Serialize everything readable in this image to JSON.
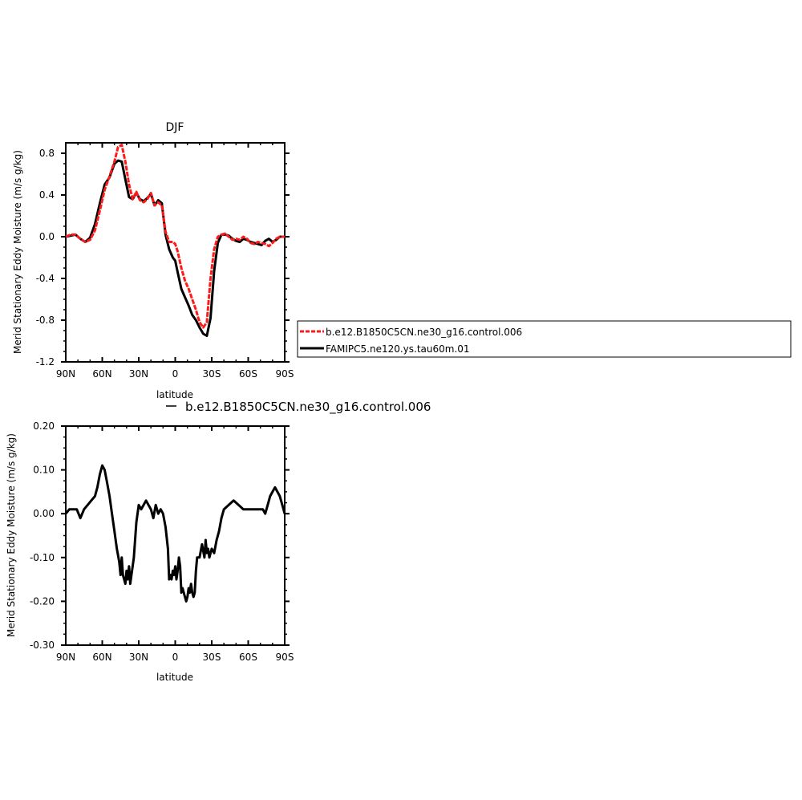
{
  "figure": {
    "legend": {
      "entries": [
        {
          "label": "b.e12.B1850C5CN.ne30_g16.control.006",
          "color": "#ff1a1a",
          "style": "dashed"
        },
        {
          "label": "FAMIPC5.ne120.ys.tau60m.01",
          "color": "#000000",
          "style": "solid"
        }
      ]
    }
  },
  "chart_data": [
    {
      "type": "line",
      "title": "DJF",
      "xlabel": "latitude",
      "ylabel": "Merid Stationary Eddy Moisture (m/s g/kg)",
      "xlim": [
        90,
        -90
      ],
      "ylim": [
        -1.2,
        0.9
      ],
      "x_ticks": [
        90,
        60,
        30,
        0,
        -30,
        -60,
        -90
      ],
      "x_tick_labels": [
        "90N",
        "60N",
        "30N",
        "0",
        "30S",
        "60S",
        "90S"
      ],
      "y_ticks": [
        0.8,
        0.4,
        0.0,
        -0.4,
        -0.8,
        -1.2
      ],
      "y_tick_labels": [
        "0.8",
        "0.4",
        "0.0",
        "-0.4",
        "-0.8",
        "-1.2"
      ],
      "series": [
        {
          "name": "b.e12.B1850C5CN.ne30_g16.control.006",
          "color": "#ff1a1a",
          "x": [
            90,
            86,
            82,
            78,
            74,
            70,
            66,
            62,
            58,
            54,
            50,
            47,
            44,
            41,
            38,
            35,
            32,
            29,
            26,
            23,
            20,
            17,
            14,
            11,
            8,
            5,
            2,
            0,
            -2,
            -5,
            -8,
            -11,
            -14,
            -17,
            -20,
            -23,
            -26,
            -29,
            -32,
            -35,
            -38,
            -41,
            -44,
            -47,
            -50,
            -53,
            -56,
            -59,
            -62,
            -65,
            -68,
            -71,
            -74,
            -77,
            -80,
            -83,
            -86,
            -90
          ],
          "y": [
            0.0,
            0.02,
            0.02,
            -0.02,
            -0.05,
            -0.03,
            0.06,
            0.25,
            0.45,
            0.58,
            0.72,
            0.86,
            0.88,
            0.72,
            0.5,
            0.36,
            0.43,
            0.35,
            0.33,
            0.36,
            0.42,
            0.3,
            0.33,
            0.3,
            0.05,
            -0.05,
            -0.05,
            -0.07,
            -0.14,
            -0.3,
            -0.42,
            -0.5,
            -0.6,
            -0.7,
            -0.82,
            -0.87,
            -0.82,
            -0.4,
            -0.12,
            0.0,
            0.02,
            0.03,
            0.0,
            -0.03,
            -0.02,
            -0.03,
            0.0,
            -0.02,
            -0.06,
            -0.07,
            -0.05,
            -0.06,
            -0.07,
            -0.09,
            -0.06,
            -0.02,
            0.0,
            0.0
          ]
        },
        {
          "name": "FAMIPC5.ne120.ys.tau60m.01",
          "color": "#000000",
          "x": [
            90,
            86,
            82,
            78,
            74,
            70,
            66,
            62,
            58,
            54,
            50,
            47,
            44,
            41,
            38,
            35,
            32,
            29,
            26,
            23,
            20,
            17,
            14,
            11,
            8,
            5,
            2,
            0,
            -2,
            -5,
            -8,
            -11,
            -14,
            -17,
            -20,
            -23,
            -26,
            -29,
            -32,
            -35,
            -38,
            -41,
            -44,
            -47,
            -50,
            -53,
            -56,
            -59,
            -62,
            -65,
            -68,
            -71,
            -74,
            -77,
            -80,
            -83,
            -86,
            -90
          ],
          "y": [
            0.0,
            0.01,
            0.02,
            -0.02,
            -0.05,
            -0.01,
            0.12,
            0.32,
            0.5,
            0.57,
            0.7,
            0.73,
            0.72,
            0.55,
            0.38,
            0.36,
            0.42,
            0.36,
            0.34,
            0.37,
            0.41,
            0.3,
            0.35,
            0.32,
            0.02,
            -0.12,
            -0.2,
            -0.23,
            -0.34,
            -0.5,
            -0.58,
            -0.66,
            -0.75,
            -0.8,
            -0.87,
            -0.93,
            -0.95,
            -0.78,
            -0.33,
            -0.06,
            0.02,
            0.02,
            0.01,
            -0.02,
            -0.04,
            -0.05,
            -0.02,
            -0.03,
            -0.05,
            -0.06,
            -0.07,
            -0.08,
            -0.04,
            -0.02,
            -0.05,
            -0.03,
            0.0,
            0.0
          ]
        }
      ]
    },
    {
      "type": "line",
      "title": "",
      "xlabel": "latitude",
      "ylabel": "Merid Stationary Eddy Moisture (m/s g/kg)",
      "xlim": [
        90,
        -90
      ],
      "ylim": [
        -0.3,
        0.2
      ],
      "x_ticks": [
        90,
        60,
        30,
        0,
        -30,
        -60,
        -90
      ],
      "x_tick_labels": [
        "90N",
        "60N",
        "30N",
        "0",
        "30S",
        "60S",
        "90S"
      ],
      "y_ticks": [
        0.2,
        0.1,
        0.0,
        -0.1,
        -0.2,
        -0.3
      ],
      "y_tick_labels": [
        "0.20",
        "0.10",
        "0.00",
        "-0.10",
        "-0.20",
        "-0.30"
      ],
      "legend_text": "b.e12.B1850C5CN.ne30_g16.control.006",
      "series": [
        {
          "name": "b.e12.B1850C5CN.ne30_g16.control.006",
          "color": "#000000",
          "x": [
            90,
            87,
            84,
            81,
            78,
            75,
            72,
            69,
            66,
            64,
            62,
            60,
            58,
            56,
            54,
            52,
            50,
            48,
            46,
            45,
            44,
            43,
            42,
            41,
            40,
            39,
            38,
            37,
            36,
            34,
            32,
            30,
            28,
            26,
            24,
            22,
            20,
            18,
            16,
            14,
            12,
            10,
            8,
            6,
            5,
            4,
            3,
            2,
            1,
            0,
            -1,
            -2,
            -3,
            -4,
            -5,
            -6,
            -7,
            -8,
            -9,
            -10,
            -11,
            -12,
            -13,
            -14,
            -15,
            -16,
            -17,
            -18,
            -20,
            -22,
            -24,
            -25,
            -26,
            -27,
            -28,
            -30,
            -32,
            -34,
            -36,
            -38,
            -40,
            -44,
            -48,
            -52,
            -56,
            -60,
            -64,
            -68,
            -72,
            -74,
            -76,
            -78,
            -80,
            -82,
            -84,
            -86,
            -88,
            -90
          ],
          "y": [
            0.0,
            0.01,
            0.01,
            0.01,
            -0.01,
            0.01,
            0.02,
            0.03,
            0.04,
            0.06,
            0.09,
            0.11,
            0.1,
            0.07,
            0.04,
            0.0,
            -0.04,
            -0.08,
            -0.11,
            -0.14,
            -0.1,
            -0.14,
            -0.15,
            -0.16,
            -0.13,
            -0.15,
            -0.12,
            -0.16,
            -0.14,
            -0.1,
            -0.02,
            0.02,
            0.01,
            0.02,
            0.03,
            0.02,
            0.01,
            -0.01,
            0.02,
            0.0,
            0.01,
            0.0,
            -0.03,
            -0.08,
            -0.15,
            -0.14,
            -0.15,
            -0.13,
            -0.14,
            -0.12,
            -0.15,
            -0.13,
            -0.1,
            -0.12,
            -0.18,
            -0.17,
            -0.18,
            -0.19,
            -0.2,
            -0.19,
            -0.17,
            -0.18,
            -0.16,
            -0.18,
            -0.19,
            -0.18,
            -0.13,
            -0.1,
            -0.1,
            -0.07,
            -0.1,
            -0.06,
            -0.09,
            -0.08,
            -0.1,
            -0.08,
            -0.09,
            -0.06,
            -0.04,
            -0.01,
            0.01,
            0.02,
            0.03,
            0.02,
            0.01,
            0.01,
            0.01,
            0.01,
            0.01,
            0.0,
            0.02,
            0.04,
            0.05,
            0.06,
            0.05,
            0.04,
            0.02,
            0.0
          ]
        }
      ]
    }
  ]
}
